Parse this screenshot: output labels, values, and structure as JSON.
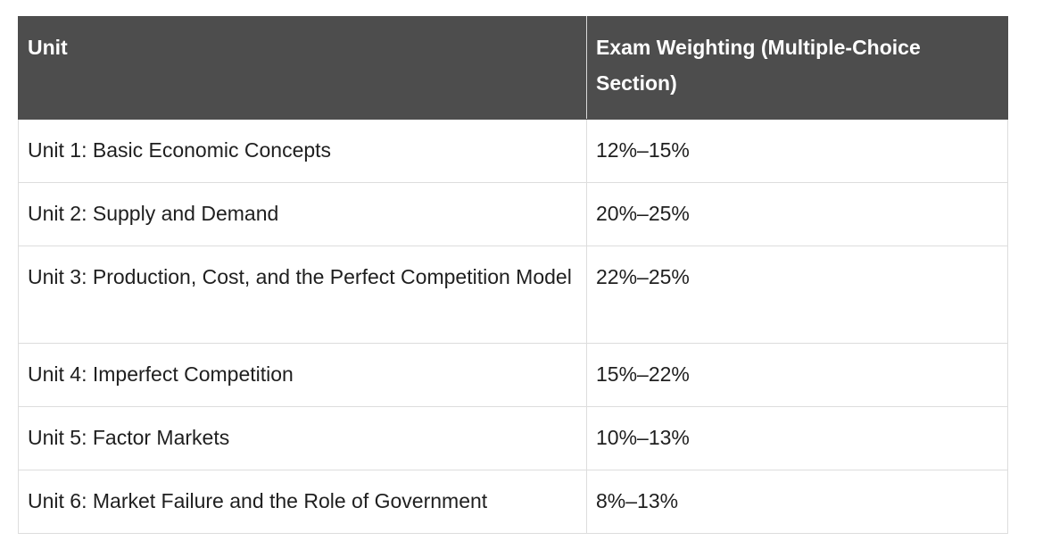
{
  "table": {
    "headers": {
      "unit": "Unit",
      "weighting": "Exam Weighting (Multiple-Choice Section)"
    },
    "rows": [
      {
        "unit": "Unit 1: Basic Economic Concepts",
        "weighting": "12%–15%"
      },
      {
        "unit": "Unit 2: Supply and Demand",
        "weighting": "20%–25%"
      },
      {
        "unit": "Unit 3: Production, Cost, and the Perfect Competition Model",
        "weighting": "22%–25%"
      },
      {
        "unit": "Unit 4: Imperfect Competition",
        "weighting": "15%–22%"
      },
      {
        "unit": "Unit 5: Factor Markets",
        "weighting": "10%–13%"
      },
      {
        "unit": "Unit 6: Market Failure and the Role of Government",
        "weighting": "8%–13%"
      }
    ]
  },
  "colors": {
    "header_bg": "#4d4d4d",
    "header_text": "#ffffff",
    "body_text": "#1f1f1f",
    "border": "#dddddd"
  }
}
